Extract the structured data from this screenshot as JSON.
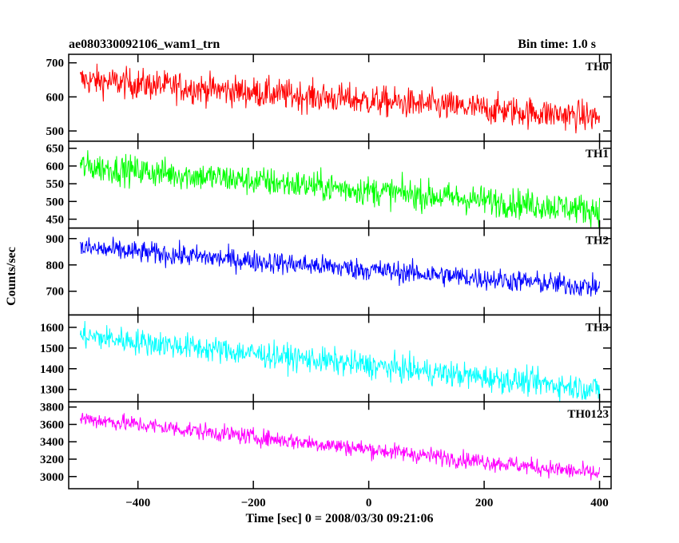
{
  "header": {
    "title": "ae080330092106_wam1_trn",
    "bin_time": "Bin time: 1.0 s"
  },
  "chart_data": {
    "type": "line",
    "title": "ae080330092106_wam1_trn",
    "subtitle": "Bin time: 1.0 s",
    "xlabel": "Time [sec] 0 = 2008/03/30 09:21:06",
    "ylabel": "Counts/sec",
    "xlim": [
      -520,
      420
    ],
    "x_ticks": [
      -400,
      -200,
      0,
      200,
      400
    ],
    "x_range": [
      -500,
      400
    ],
    "panels": [
      {
        "name": "TH0",
        "color": "#ff0000",
        "ylim": [
          470,
          725
        ],
        "y_ticks": [
          500,
          600,
          700
        ],
        "trend_start": 650,
        "trend_end": 540,
        "noise": 32
      },
      {
        "name": "TH1",
        "color": "#00ff00",
        "ylim": [
          425,
          670
        ],
        "y_ticks": [
          450,
          500,
          550,
          600,
          650
        ],
        "trend_start": 600,
        "trend_end": 475,
        "noise": 30
      },
      {
        "name": "TH2",
        "color": "#0000ff",
        "ylim": [
          610,
          940
        ],
        "y_ticks": [
          700,
          800,
          900
        ],
        "trend_start": 865,
        "trend_end": 715,
        "noise": 30
      },
      {
        "name": "TH3",
        "color": "#00ffff",
        "ylim": [
          1240,
          1660
        ],
        "y_ticks": [
          1300,
          1400,
          1500,
          1600
        ],
        "trend_start": 1560,
        "trend_end": 1300,
        "noise": 45
      },
      {
        "name": "TH0123",
        "color": "#ff00ff",
        "ylim": [
          2860,
          3860
        ],
        "y_ticks": [
          3000,
          3200,
          3400,
          3600,
          3800
        ],
        "trend_start": 3670,
        "trend_end": 3030,
        "noise": 70
      }
    ]
  }
}
